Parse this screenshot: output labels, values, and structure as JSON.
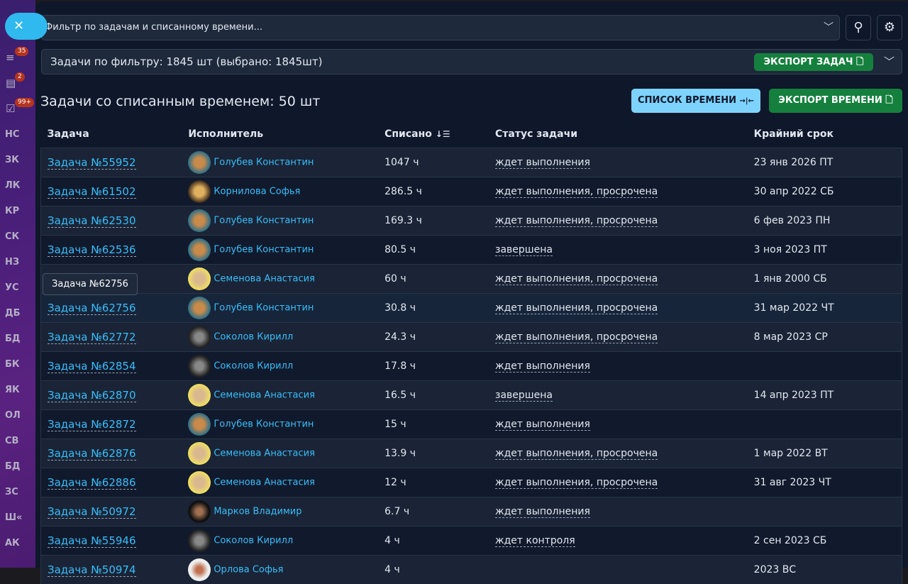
{
  "sidebar": {
    "close_icon": "✕",
    "items": [
      {
        "icon": "filter-icon",
        "glyph": "≡",
        "badge": "35"
      },
      {
        "icon": "calendar-icon",
        "glyph": "▤",
        "badge": "2"
      },
      {
        "icon": "checkbox-icon",
        "glyph": "☑",
        "badge": "99+"
      }
    ],
    "labels": [
      "НС",
      "ЗК",
      "ЛК",
      "КР",
      "СК",
      "НЗ",
      "УС",
      "ДБ",
      "БД",
      "БК",
      "ЯК",
      "ОЛ",
      "СВ",
      "БД",
      "ЗС",
      "Ш«",
      "АК"
    ]
  },
  "filter": {
    "placeholder": "Фильтр по задачам и списанному времени..."
  },
  "summary": {
    "text": "Задачи по фильтру: 1845 шт (выбрано: 1845шт)",
    "export_tasks": "ЭКСПОРТ ЗАДАЧ"
  },
  "section": {
    "title": "Задачи со списанным временем: 50 шт",
    "time_list": "СПИСОК ВРЕМЕНИ",
    "export_time": "ЭКСПОРТ ВРЕМЕНИ"
  },
  "table": {
    "headers": [
      "Задача",
      "Исполнитель",
      "Списано",
      "Статус задачи",
      "Крайний срок"
    ],
    "rows": [
      {
        "task": "Задача №55952",
        "exec": "Голубев Константин",
        "spent": "1047 ч",
        "status": "ждет выполнения",
        "due": "23 янв 2026 ПТ"
      },
      {
        "task": "Задача №61502",
        "exec": "Корнилова Софья",
        "spent": "286.5 ч",
        "status": "ждет выполнения, просрочена",
        "due": "30 апр 2022 СБ"
      },
      {
        "task": "Задача №62530",
        "exec": "Голубев Константин",
        "spent": "169.3 ч",
        "status": "ждет выполнения, просрочена",
        "due": "6 фев 2023 ПН"
      },
      {
        "task": "Задача №62536",
        "exec": "Голубев Константин",
        "spent": "80.5 ч",
        "status": "завершена",
        "due": "3 ноя 2023 ПТ"
      },
      {
        "task": "",
        "exec": "Семенова Анастасия",
        "spent": "60 ч",
        "status": "ждет выполнения, просрочена",
        "due": "1 янв 2000 СБ"
      },
      {
        "task": "Задача №62756",
        "exec": "Голубев Константин",
        "spent": "30.8 ч",
        "status": "ждет выполнения, просрочена",
        "due": "31 мар 2022 ЧТ"
      },
      {
        "task": "Задача №62772",
        "exec": "Соколов Кирилл",
        "spent": "24.3 ч",
        "status": "ждет выполнения, просрочена",
        "due": "8 мар 2023 СР"
      },
      {
        "task": "Задача №62854",
        "exec": "Соколов Кирилл",
        "spent": "17.8 ч",
        "status": "ждет выполнения",
        "due": ""
      },
      {
        "task": "Задача №62870",
        "exec": "Семенова Анастасия",
        "spent": "16.5 ч",
        "status": "завершена",
        "due": "14 апр 2023 ПТ"
      },
      {
        "task": "Задача №62872",
        "exec": "Голубев Константин",
        "spent": "15 ч",
        "status": "ждет выполнения",
        "due": ""
      },
      {
        "task": "Задача №62876",
        "exec": "Семенова Анастасия",
        "spent": "13.9 ч",
        "status": "ждет выполнения, просрочена",
        "due": "1 мар 2022 ВТ"
      },
      {
        "task": "Задача №62886",
        "exec": "Семенова Анастасия",
        "spent": "12 ч",
        "status": "ждет выполнения, просрочена",
        "due": "31 авг 2023 ЧТ"
      },
      {
        "task": "Задача №50972",
        "exec": "Марков Владимир",
        "spent": "6.7 ч",
        "status": "ждет выполнения",
        "due": ""
      },
      {
        "task": "Задача №55946",
        "exec": "Соколов Кирилл",
        "spent": "4 ч",
        "status": "ждет контроля",
        "due": "2 сен 2023 СБ"
      },
      {
        "task": "Задача №50974",
        "exec": "Орлова Софья",
        "spent": "4 ч",
        "status": "",
        "due": "2023 ВС"
      }
    ]
  },
  "tooltip": "Задача №62756",
  "colors": {
    "accent": "#38bdf8",
    "green": "#15803d",
    "sidebar": "#4a1f7a"
  }
}
